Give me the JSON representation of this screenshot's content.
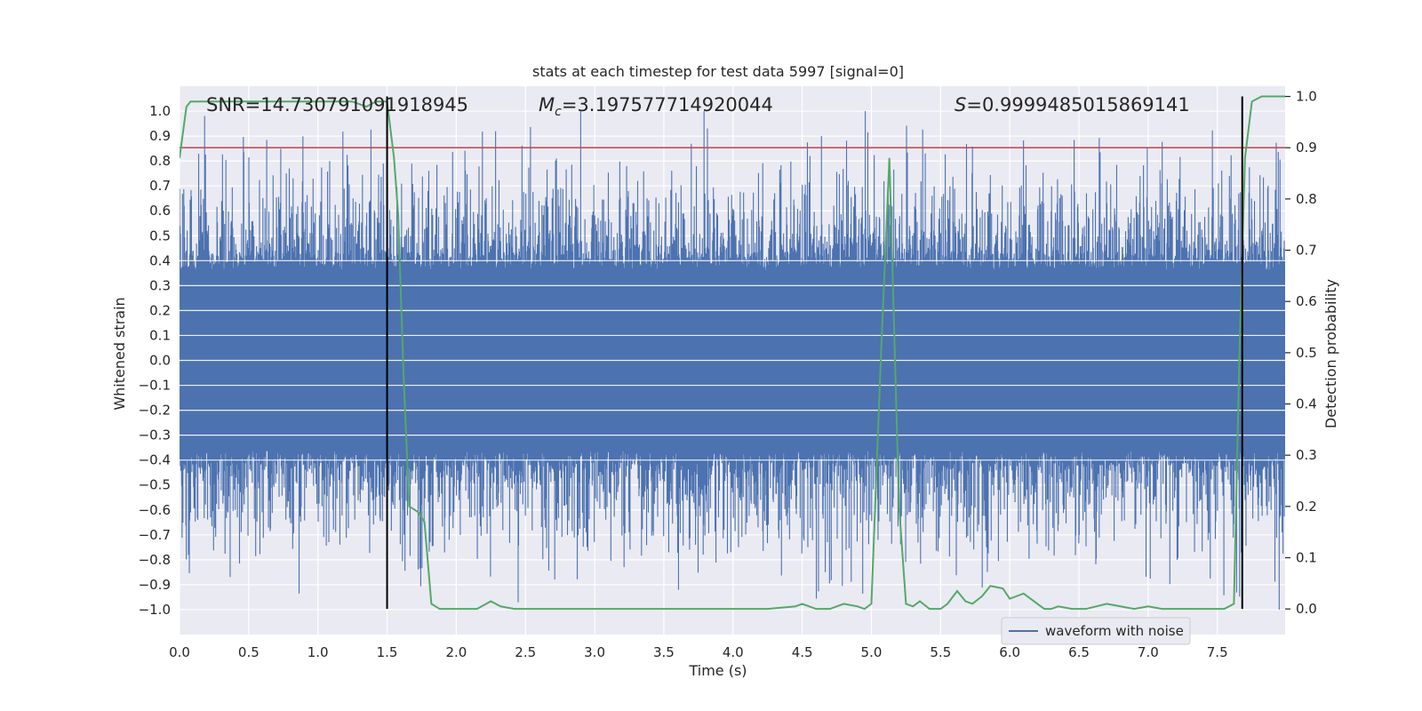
{
  "chart_data": {
    "type": "line",
    "title": "stats at each timestep for test data 5997 [signal=0]",
    "xlabel": "Time (s)",
    "ylabel_left": "Whitened strain",
    "ylabel_right": "Detection probability",
    "xlim": [
      0.0,
      7.99
    ],
    "ylim_left": [
      -1.1,
      1.1
    ],
    "ylim_right": [
      -0.05,
      1.02
    ],
    "xticks": [
      0.0,
      0.5,
      1.0,
      1.5,
      2.0,
      2.5,
      3.0,
      3.5,
      4.0,
      4.5,
      5.0,
      5.5,
      6.0,
      6.5,
      7.0,
      7.5
    ],
    "xtick_labels": [
      "0.0",
      "0.5",
      "1.0",
      "1.5",
      "2.0",
      "2.5",
      "3.0",
      "3.5",
      "4.0",
      "4.5",
      "5.0",
      "5.5",
      "6.0",
      "6.5",
      "7.0",
      "7.5"
    ],
    "yticks_left": [
      1.0,
      0.9,
      0.8,
      0.7,
      0.6,
      0.5,
      0.4,
      0.3,
      0.2,
      0.1,
      0.0,
      -0.1,
      -0.2,
      -0.3,
      -0.4,
      -0.5,
      -0.6,
      -0.7,
      -0.8,
      -0.9,
      -1.0
    ],
    "ytick_labels_left": [
      "1.0",
      "0.9",
      "0.8",
      "0.7",
      "0.6",
      "0.5",
      "0.4",
      "0.3",
      "0.2",
      "0.1",
      "0.0",
      "−0.1",
      "−0.2",
      "−0.3",
      "−0.4",
      "−0.5",
      "−0.6",
      "−0.7",
      "−0.8",
      "−0.9",
      "−1.0"
    ],
    "yticks_right": [
      1.0,
      0.9,
      0.8,
      0.7,
      0.6,
      0.5,
      0.4,
      0.3,
      0.2,
      0.1,
      0.0
    ],
    "ytick_labels_right": [
      "1.0",
      "0.9",
      "0.8",
      "0.7",
      "0.6",
      "0.5",
      "0.4",
      "0.3",
      "0.2",
      "0.1",
      "0.0"
    ],
    "annotations": {
      "snr": "SNR=14.730791091918945",
      "mc_symbol": "M",
      "mc_subscript": "c",
      "mc_value": "=3.197577714920044",
      "s_symbol": "S",
      "s_value": "=0.9999485015869141"
    },
    "threshold_line": {
      "axis": "right",
      "y": 0.9,
      "color": "#c44e52"
    },
    "vertical_lines": [
      1.5,
      7.68
    ],
    "waveform": {
      "name": "waveform with noise",
      "color": "#4c72b0",
      "typical_amplitude": 0.38,
      "max_amplitude": 1.0
    },
    "probability": {
      "name": "Detection probability",
      "color": "#55a868",
      "x": [
        0.0,
        0.05,
        0.08,
        0.15,
        0.3,
        0.5,
        0.7,
        0.9,
        1.1,
        1.25,
        1.35,
        1.42,
        1.5,
        1.55,
        1.58,
        1.62,
        1.66,
        1.72,
        1.77,
        1.82,
        1.88,
        1.95,
        2.05,
        2.15,
        2.25,
        2.32,
        2.42,
        2.55,
        2.7,
        2.9,
        3.1,
        3.3,
        3.5,
        3.7,
        3.9,
        4.05,
        4.25,
        4.45,
        4.5,
        4.6,
        4.7,
        4.8,
        4.9,
        4.95,
        5.0,
        5.07,
        5.13,
        5.2,
        5.25,
        5.3,
        5.35,
        5.42,
        5.5,
        5.55,
        5.62,
        5.68,
        5.73,
        5.8,
        5.86,
        5.95,
        6.0,
        6.05,
        6.1,
        6.2,
        6.25,
        6.3,
        6.35,
        6.45,
        6.55,
        6.7,
        6.8,
        6.9,
        7.0,
        7.1,
        7.2,
        7.3,
        7.4,
        7.5,
        7.55,
        7.62,
        7.66,
        7.7,
        7.75,
        7.82,
        7.99
      ],
      "y": [
        0.88,
        0.98,
        0.99,
        0.99,
        0.99,
        0.99,
        0.99,
        0.99,
        0.99,
        0.99,
        0.98,
        0.99,
        0.99,
        0.88,
        0.77,
        0.45,
        0.2,
        0.19,
        0.17,
        0.01,
        0.0,
        0.0,
        0.0,
        0.0,
        0.015,
        0.005,
        0.0,
        0.0,
        0.0,
        0.0,
        0.0,
        0.0,
        0.0,
        0.0,
        0.0,
        0.0,
        0.0,
        0.005,
        0.01,
        0.0,
        0.0,
        0.01,
        0.005,
        0.0,
        0.01,
        0.5,
        0.88,
        0.2,
        0.01,
        0.005,
        0.015,
        0.0,
        0.0,
        0.01,
        0.035,
        0.015,
        0.01,
        0.025,
        0.045,
        0.04,
        0.02,
        0.025,
        0.03,
        0.01,
        0.0,
        0.0,
        0.005,
        0.0,
        0.0,
        0.01,
        0.005,
        0.0,
        0.005,
        0.0,
        0.0,
        0.0,
        0.0,
        0.0,
        0.0,
        0.01,
        0.5,
        0.88,
        0.99,
        1.0,
        1.0
      ]
    }
  }
}
